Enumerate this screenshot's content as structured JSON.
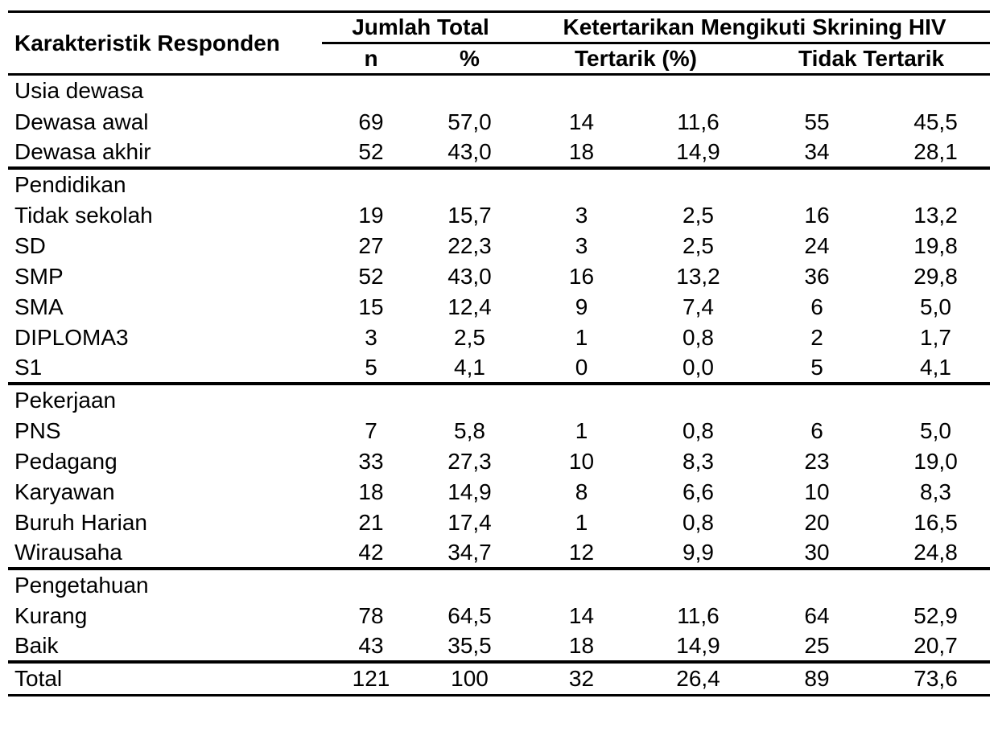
{
  "table": {
    "header": {
      "col_label": "Karakteristik Responden",
      "group1": "Jumlah Total",
      "group2": "Ketertarikan Mengikuti Skrining HIV",
      "sub": [
        "n",
        "%",
        "Tertarik (%)",
        "Tidak Tertarik"
      ]
    },
    "sections": [
      {
        "group": "Usia dewasa",
        "rows": [
          {
            "label": "Dewasa awal",
            "values": [
              "69",
              "57,0",
              "14",
              "11,6",
              "55",
              "45,5"
            ]
          },
          {
            "label": "Dewasa akhir",
            "values": [
              "52",
              "43,0",
              "18",
              "14,9",
              "34",
              "28,1"
            ]
          }
        ]
      },
      {
        "group": "Pendidikan",
        "rows": [
          {
            "label": "Tidak sekolah",
            "values": [
              "19",
              "15,7",
              "3",
              "2,5",
              "16",
              "13,2"
            ]
          },
          {
            "label": "SD",
            "values": [
              "27",
              "22,3",
              "3",
              "2,5",
              "24",
              "19,8"
            ]
          },
          {
            "label": "SMP",
            "values": [
              "52",
              "43,0",
              "16",
              "13,2",
              "36",
              "29,8"
            ]
          },
          {
            "label": "SMA",
            "values": [
              "15",
              "12,4",
              "9",
              "7,4",
              "6",
              "5,0"
            ]
          },
          {
            "label": "DIPLOMA3",
            "values": [
              "3",
              "2,5",
              "1",
              "0,8",
              "2",
              "1,7"
            ]
          },
          {
            "label": "S1",
            "values": [
              "5",
              "4,1",
              "0",
              "0,0",
              "5",
              "4,1"
            ]
          }
        ]
      },
      {
        "group": "Pekerjaan",
        "rows": [
          {
            "label": "PNS",
            "values": [
              "7",
              "5,8",
              "1",
              "0,8",
              "6",
              "5,0"
            ]
          },
          {
            "label": "Pedagang",
            "values": [
              "33",
              "27,3",
              "10",
              "8,3",
              "23",
              "19,0"
            ]
          },
          {
            "label": "Karyawan",
            "values": [
              "18",
              "14,9",
              "8",
              "6,6",
              "10",
              "8,3"
            ]
          },
          {
            "label": "Buruh Harian",
            "values": [
              "21",
              "17,4",
              "1",
              "0,8",
              "20",
              "16,5"
            ]
          },
          {
            "label": "Wirausaha",
            "values": [
              "42",
              "34,7",
              "12",
              "9,9",
              "30",
              "24,8"
            ]
          }
        ]
      },
      {
        "group": "Pengetahuan",
        "rows": [
          {
            "label": "Kurang",
            "values": [
              "78",
              "64,5",
              "14",
              "11,6",
              "64",
              "52,9"
            ]
          },
          {
            "label": "Baik",
            "values": [
              "43",
              "35,5",
              "18",
              "14,9",
              "25",
              "20,7"
            ]
          }
        ]
      }
    ],
    "total_row": {
      "label": "Total",
      "values": [
        "121",
        "100",
        "32",
        "26,4",
        "89",
        "73,6"
      ]
    }
  }
}
